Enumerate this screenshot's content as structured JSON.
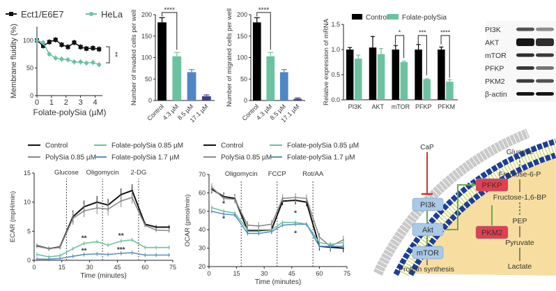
{
  "chart_data": [
    {
      "id": "fluidity",
      "type": "line",
      "xlabel": "Folate-polySia (µM)",
      "ylabel": "Membrane fluidity (%)",
      "xlim": [
        0,
        4.5
      ],
      "ylim": [
        0,
        125
      ],
      "xticks": [
        0,
        1,
        2,
        3,
        4
      ],
      "yticks": [
        0,
        50,
        100
      ],
      "x": [
        0,
        0.43,
        0.85,
        1.28,
        1.7,
        2.13,
        2.56,
        3,
        3.4,
        3.85,
        4.27
      ],
      "series": [
        {
          "name": "Ect1/E6E7",
          "color": "#111111",
          "marker": "square",
          "values": [
            100,
            90,
            97,
            101,
            92,
            88,
            96,
            88,
            85,
            86,
            84
          ]
        },
        {
          "name": "HeLa",
          "color": "#6cc2a0",
          "marker": "circle",
          "values": [
            100,
            96,
            75,
            68,
            66,
            65,
            61,
            61,
            59,
            60,
            56
          ]
        }
      ],
      "annotations": [
        "**"
      ],
      "legend": "top"
    },
    {
      "id": "invaded",
      "type": "bar",
      "ylabel": "Number of invaded cells per well",
      "ylim": [
        0,
        200
      ],
      "yticks": [
        0,
        50,
        100,
        150,
        200
      ],
      "categories": [
        "Control",
        "4.3 µM",
        "8.5  µM",
        "17.1 µM"
      ],
      "values": [
        182,
        103,
        66,
        10
      ],
      "errors": [
        11,
        9,
        6,
        3
      ],
      "colors": [
        "#000000",
        "#6cc2a0",
        "#4f86c6",
        "#3a3f8f"
      ],
      "annotations": [
        "****"
      ]
    },
    {
      "id": "migrated",
      "type": "bar",
      "ylabel": "Number of migrated cells per well",
      "ylim": [
        0,
        200
      ],
      "yticks": [
        0,
        50,
        100,
        150,
        200
      ],
      "categories": [
        "Control",
        "4.3 µM",
        "8.5  µM",
        "17.1 µM"
      ],
      "values": [
        182,
        103,
        66,
        4
      ],
      "errors": [
        11,
        9,
        6,
        2
      ],
      "colors": [
        "#000000",
        "#6cc2a0",
        "#4f86c6",
        "#3a3f8f"
      ],
      "annotations": [
        "****"
      ]
    },
    {
      "id": "mrna",
      "type": "bar",
      "ylabel": "Relative expression of mRNA",
      "ylim": [
        0,
        1.5
      ],
      "yticks": [
        0.0,
        0.5,
        1.0,
        1.5
      ],
      "categories": [
        "PI3K",
        "AKT",
        "mTOR",
        "PFKP",
        "PFKM"
      ],
      "series": [
        {
          "name": "Control",
          "color": "#000000",
          "values": [
            1.0,
            1.04,
            1.0,
            1.0,
            1.0
          ],
          "errors": [
            0.04,
            0.22,
            0.08,
            0.1,
            0.05
          ]
        },
        {
          "name": "Folate-polySia",
          "color": "#6cc2a0",
          "values": [
            0.82,
            0.91,
            0.75,
            0.41,
            0.36
          ],
          "errors": [
            0.07,
            0.11,
            0.02,
            0.01,
            0.04
          ]
        }
      ],
      "significance": [
        "",
        "",
        "*",
        "***",
        "****"
      ],
      "legend": "top"
    },
    {
      "id": "ecar",
      "type": "line",
      "xlabel": "Time (minutes)",
      "ylabel": "ECAR (mpH/min)",
      "xlim": [
        0,
        75
      ],
      "ylim": [
        -1,
        15
      ],
      "xticks": [
        0,
        15,
        30,
        45,
        60,
        75
      ],
      "yticks": [
        0,
        5,
        10,
        15
      ],
      "x": [
        1.5,
        8,
        14,
        21,
        27,
        34,
        40,
        47,
        53,
        60,
        66,
        73
      ],
      "injections": [
        {
          "label": "Glucose",
          "x": 17.5
        },
        {
          "label": "Oligomycin",
          "x": 37
        },
        {
          "label": "2-DG",
          "x": 56.5
        }
      ],
      "series": [
        {
          "name": "Control",
          "color": "#111111",
          "values": [
            2.5,
            2.0,
            2.3,
            7.5,
            9.2,
            10,
            9.5,
            11.3,
            12,
            6.2,
            5.7,
            5.7
          ]
        },
        {
          "name": "PolySia 0.85 µM",
          "color": "#8a8a8a",
          "values": [
            2.4,
            2.0,
            2.2,
            7.2,
            8.5,
            9,
            8.8,
            10.2,
            10.8,
            6.0,
            5.2,
            5.1
          ]
        },
        {
          "name": "Folate-polySia 0.85 µM",
          "color": "#6cc2a0",
          "values": [
            1.0,
            0.6,
            0.8,
            2.0,
            2.9,
            3.2,
            2.6,
            3.3,
            3.5,
            2.2,
            2.2,
            2.2
          ]
        },
        {
          "name": "Folate-polySia 1.7 µM",
          "color": "#5b8fc4",
          "values": [
            0.2,
            0.2,
            0.3,
            0.7,
            1.0,
            1.1,
            1.0,
            1.2,
            1.3,
            0.9,
            0.9,
            0.9
          ]
        }
      ],
      "annotations": [
        {
          "text": "**",
          "x": 27,
          "y": 3.8
        },
        {
          "text": "**",
          "x": 47,
          "y": 4.2
        },
        {
          "text": "**",
          "x": 27,
          "y": 1.6
        },
        {
          "text": "***",
          "x": 47,
          "y": 1.8
        }
      ]
    },
    {
      "id": "ocar",
      "type": "line",
      "xlabel": "Time (minutes)",
      "ylabel": "OCAR (pmol/min)",
      "xlim": [
        0,
        75
      ],
      "ylim": [
        20,
        70
      ],
      "xticks": [
        0,
        15,
        30,
        45,
        60,
        75
      ],
      "yticks": [
        20,
        30,
        40,
        50,
        60,
        70
      ],
      "x": [
        1.5,
        8,
        14,
        21,
        27,
        34,
        40,
        47,
        53,
        60,
        66,
        73
      ],
      "injections": [
        {
          "label": "Oligomycin",
          "x": 17.5
        },
        {
          "label": "FCCP",
          "x": 37
        },
        {
          "label": "Rot/AA",
          "x": 56.5
        }
      ],
      "series": [
        {
          "name": "Control",
          "color": "#111111",
          "values": [
            62,
            58,
            57,
            39.5,
            39.5,
            40,
            55.5,
            56,
            55,
            31,
            30.5,
            30
          ]
        },
        {
          "name": "PolySia 0.85 µM",
          "color": "#8a8a8a",
          "values": [
            63,
            57,
            56.5,
            42.5,
            42,
            43,
            57,
            57.5,
            57,
            36,
            31,
            34.5
          ]
        },
        {
          "name": "Folate-polySia 0.85 µM",
          "color": "#6cc2a0",
          "values": [
            52,
            50,
            49,
            40,
            40,
            40,
            44,
            44,
            43,
            33,
            32,
            33
          ]
        },
        {
          "name": "Folate-polySia 1.7 µM",
          "color": "#5b8fc4",
          "values": [
            50,
            48.5,
            48,
            38,
            38,
            39,
            42.5,
            43,
            43,
            31,
            31,
            31
          ]
        }
      ],
      "annotations": [
        {
          "text": "*",
          "x": 8,
          "y": 54
        },
        {
          "text": "*",
          "x": 8,
          "y": 46
        },
        {
          "text": "*",
          "x": 47,
          "y": 49
        },
        {
          "text": "*",
          "x": 47,
          "y": 38
        }
      ]
    }
  ],
  "blot": {
    "rows": [
      "PI3K",
      "AKT",
      "mTOR",
      "PFKP",
      "PKM2",
      "β-actin"
    ],
    "intensity": [
      [
        0.7,
        0.45
      ],
      [
        0.95,
        0.85
      ],
      [
        0.85,
        0.8
      ],
      [
        0.8,
        0.55
      ],
      [
        0.8,
        0.7
      ],
      [
        0.95,
        0.95
      ]
    ]
  },
  "diagram": {
    "caP": "CaP",
    "pi3k": "PI3k",
    "akt": "Akt",
    "mtor": "mTOR",
    "protein": "Protein synthesis",
    "pfkp": "PFKP",
    "pkm2": "PKM2",
    "glycolysis": [
      "Glucose",
      "Fructose-6-P",
      "Fructose-1,6-BP",
      "PEP",
      "Pyruvate",
      "Lactate"
    ],
    "colors": {
      "cytoplasm": "#f7dea0",
      "membrane": "#1d3f93",
      "kinase": "#a9c9e6",
      "enzyme": "#e04050",
      "activation": "#6aa84f",
      "inhibition": "#d0312d"
    }
  }
}
